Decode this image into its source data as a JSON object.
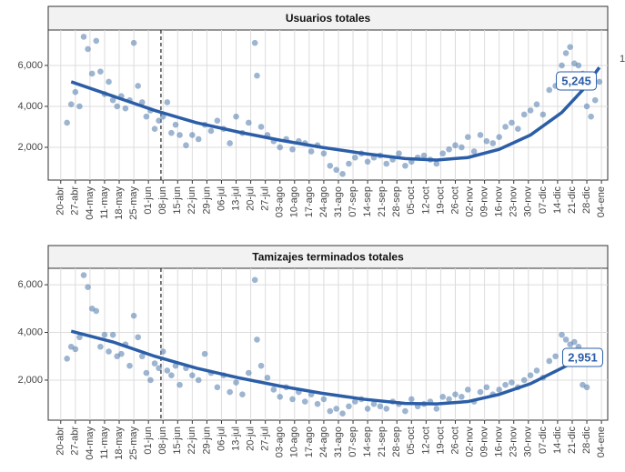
{
  "chart_data": [
    {
      "type": "scatter",
      "title": "Usuarios totales",
      "x": [
        3,
        5,
        7,
        9,
        11,
        13,
        15,
        17,
        19,
        21,
        23,
        25,
        27,
        29,
        31,
        33,
        35,
        37,
        39,
        41,
        43,
        45,
        47,
        49,
        51,
        53,
        55,
        57,
        60,
        63,
        66,
        69,
        72,
        75,
        78,
        81,
        84,
        87,
        90,
        93,
        94,
        96,
        99,
        102,
        105,
        108,
        111,
        114,
        117,
        120,
        123,
        126,
        129,
        132,
        135,
        138,
        141,
        144,
        147,
        150,
        153,
        156,
        159,
        162,
        165,
        168,
        171,
        174,
        177,
        180,
        183,
        186,
        189,
        192,
        195,
        198,
        201,
        204,
        207,
        210,
        213,
        216,
        219,
        222,
        225,
        228,
        231,
        234,
        237,
        240,
        242,
        244,
        246,
        248,
        250,
        252,
        254,
        256,
        258
      ],
      "values": [
        3200,
        4100,
        4700,
        4000,
        7400,
        6800,
        5600,
        7200,
        5700,
        4600,
        5200,
        4300,
        4000,
        4500,
        3900,
        4300,
        7100,
        5000,
        4200,
        3500,
        3800,
        2900,
        3300,
        3500,
        4200,
        2700,
        3100,
        2600,
        2100,
        2600,
        2400,
        3100,
        2800,
        3300,
        2900,
        2200,
        3500,
        2700,
        3200,
        7100,
        5500,
        3000,
        2600,
        2300,
        2000,
        2400,
        1900,
        2300,
        2200,
        1800,
        2100,
        1700,
        1100,
        900,
        700,
        1200,
        1500,
        1700,
        1300,
        1500,
        1600,
        1200,
        1400,
        1700,
        1100,
        1300,
        1500,
        1600,
        1400,
        1200,
        1700,
        1900,
        2100,
        2000,
        2500,
        1800,
        2600,
        2300,
        2200,
        2500,
        3000,
        3200,
        2900,
        3600,
        3800,
        4100,
        3600,
        4800,
        5000,
        6000,
        6600,
        6900,
        6100,
        6000,
        5600,
        4000,
        3500,
        4300,
        5200
      ],
      "trend_x": [
        5,
        25,
        45,
        65,
        85,
        105,
        125,
        145,
        165,
        180,
        195,
        210,
        225,
        240,
        250,
        258
      ],
      "trend_values": [
        5200,
        4500,
        3800,
        3200,
        2750,
        2350,
        2000,
        1700,
        1450,
        1380,
        1500,
        1900,
        2600,
        3700,
        4800,
        5900
      ],
      "annotation": {
        "x": 247,
        "value": 5245,
        "label": "5,245"
      },
      "vline": 48,
      "point_color": "#5b84b1",
      "trend_color": "#2b5ea7",
      "xlim": [
        -6,
        262
      ],
      "ylim": [
        400,
        7730
      ],
      "yticks": [
        {
          "value": 2000,
          "label": "2,000"
        },
        {
          "value": 4000,
          "label": "4,000"
        },
        {
          "value": 6000,
          "label": "6,000"
        }
      ],
      "xticks": [
        {
          "value": 0,
          "label": "20-abr"
        },
        {
          "value": 7,
          "label": "27-abr"
        },
        {
          "value": 14,
          "label": "04-may"
        },
        {
          "value": 21,
          "label": "11-may"
        },
        {
          "value": 28,
          "label": "18-may"
        },
        {
          "value": 35,
          "label": "25-may"
        },
        {
          "value": 42,
          "label": "01-jun"
        },
        {
          "value": 49,
          "label": "08-jun"
        },
        {
          "value": 56,
          "label": "15-jun"
        },
        {
          "value": 63,
          "label": "22-jun"
        },
        {
          "value": 70,
          "label": "29-jun"
        },
        {
          "value": 77,
          "label": "06-jul"
        },
        {
          "value": 84,
          "label": "13-jul"
        },
        {
          "value": 91,
          "label": "20-jul"
        },
        {
          "value": 98,
          "label": "27-jul"
        },
        {
          "value": 105,
          "label": "03-ago"
        },
        {
          "value": 112,
          "label": "10-ago"
        },
        {
          "value": 119,
          "label": "17-ago"
        },
        {
          "value": 126,
          "label": "24-ago"
        },
        {
          "value": 133,
          "label": "31-ago"
        },
        {
          "value": 140,
          "label": "07-sep"
        },
        {
          "value": 147,
          "label": "14-sep"
        },
        {
          "value": 154,
          "label": "21-sep"
        },
        {
          "value": 161,
          "label": "28-sep"
        },
        {
          "value": 168,
          "label": "05-oct"
        },
        {
          "value": 175,
          "label": "12-oct"
        },
        {
          "value": 182,
          "label": "19-oct"
        },
        {
          "value": 189,
          "label": "26-oct"
        },
        {
          "value": 196,
          "label": "02-nov"
        },
        {
          "value": 203,
          "label": "09-nov"
        },
        {
          "value": 210,
          "label": "16-nov"
        },
        {
          "value": 217,
          "label": "23-nov"
        },
        {
          "value": 224,
          "label": "30-nov"
        },
        {
          "value": 231,
          "label": "07-dic"
        },
        {
          "value": 238,
          "label": "14-dic"
        },
        {
          "value": 245,
          "label": "21-dic"
        },
        {
          "value": 252,
          "label": "28-dic"
        },
        {
          "value": 259,
          "label": "04-ene"
        }
      ],
      "grid": true,
      "side_text": "1"
    },
    {
      "type": "scatter",
      "title": "Tamizajes terminados totales",
      "x": [
        3,
        5,
        7,
        9,
        11,
        13,
        15,
        17,
        19,
        21,
        23,
        25,
        27,
        29,
        31,
        33,
        35,
        37,
        39,
        41,
        43,
        45,
        47,
        49,
        51,
        53,
        55,
        57,
        60,
        63,
        66,
        69,
        72,
        75,
        78,
        81,
        84,
        87,
        90,
        93,
        94,
        96,
        99,
        102,
        105,
        108,
        111,
        114,
        117,
        120,
        123,
        126,
        129,
        132,
        135,
        138,
        141,
        144,
        147,
        150,
        153,
        156,
        159,
        162,
        165,
        168,
        171,
        174,
        177,
        180,
        183,
        186,
        189,
        192,
        195,
        198,
        201,
        204,
        207,
        210,
        213,
        216,
        219,
        222,
        225,
        228,
        231,
        234,
        237,
        240,
        242,
        244,
        246,
        248,
        250,
        252,
        254,
        256,
        258
      ],
      "values": [
        2900,
        3400,
        3300,
        3800,
        6400,
        5900,
        5000,
        4900,
        3400,
        3900,
        3200,
        3900,
        3000,
        3100,
        3500,
        2600,
        4700,
        3800,
        3000,
        2300,
        2000,
        2700,
        2500,
        3200,
        2400,
        2200,
        2600,
        1800,
        2500,
        2200,
        2000,
        3100,
        2300,
        1700,
        2200,
        1500,
        1900,
        1400,
        2300,
        6200,
        3700,
        2600,
        2100,
        1600,
        1300,
        1700,
        1200,
        1500,
        1100,
        1400,
        1000,
        1200,
        700,
        800,
        600,
        900,
        1100,
        1200,
        800,
        1000,
        900,
        800,
        1100,
        1000,
        700,
        1200,
        900,
        1000,
        1100,
        800,
        1300,
        1200,
        1400,
        1300,
        1600,
        1100,
        1500,
        1700,
        1400,
        1600,
        1800,
        1900,
        1700,
        2000,
        2200,
        2400,
        2100,
        2800,
        3000,
        3900,
        3700,
        3500,
        3600,
        3400,
        1800,
        1700,
        2700,
        3100,
        2900
      ],
      "trend_x": [
        5,
        25,
        45,
        65,
        85,
        105,
        125,
        145,
        165,
        180,
        195,
        210,
        225,
        240,
        250,
        258
      ],
      "trend_values": [
        4050,
        3600,
        3000,
        2500,
        2100,
        1750,
        1450,
        1200,
        1020,
        1000,
        1100,
        1400,
        1850,
        2500,
        2950,
        3300
      ],
      "annotation": {
        "x": 250,
        "value": 2951,
        "label": "2,951"
      },
      "vline": 48,
      "point_color": "#5b84b1",
      "trend_color": "#2b5ea7",
      "xlim": [
        -6,
        262
      ],
      "ylim": [
        320,
        6690
      ],
      "yticks": [
        {
          "value": 2000,
          "label": "2,000"
        },
        {
          "value": 4000,
          "label": "4,000"
        },
        {
          "value": 6000,
          "label": "6,000"
        }
      ],
      "xticks": [
        {
          "value": 0,
          "label": "20-abr"
        },
        {
          "value": 7,
          "label": "27-abr"
        },
        {
          "value": 14,
          "label": "04-may"
        },
        {
          "value": 21,
          "label": "11-may"
        },
        {
          "value": 28,
          "label": "18-may"
        },
        {
          "value": 35,
          "label": "25-may"
        },
        {
          "value": 42,
          "label": "01-jun"
        },
        {
          "value": 49,
          "label": "08-jun"
        },
        {
          "value": 56,
          "label": "15-jun"
        },
        {
          "value": 63,
          "label": "22-jun"
        },
        {
          "value": 70,
          "label": "29-jun"
        },
        {
          "value": 77,
          "label": "06-jul"
        },
        {
          "value": 84,
          "label": "13-jul"
        },
        {
          "value": 91,
          "label": "20-jul"
        },
        {
          "value": 98,
          "label": "27-jul"
        },
        {
          "value": 105,
          "label": "03-ago"
        },
        {
          "value": 112,
          "label": "10-ago"
        },
        {
          "value": 119,
          "label": "17-ago"
        },
        {
          "value": 126,
          "label": "24-ago"
        },
        {
          "value": 133,
          "label": "31-ago"
        },
        {
          "value": 140,
          "label": "07-sep"
        },
        {
          "value": 147,
          "label": "14-sep"
        },
        {
          "value": 154,
          "label": "21-sep"
        },
        {
          "value": 161,
          "label": "28-sep"
        },
        {
          "value": 168,
          "label": "05-oct"
        },
        {
          "value": 175,
          "label": "12-oct"
        },
        {
          "value": 182,
          "label": "19-oct"
        },
        {
          "value": 189,
          "label": "26-oct"
        },
        {
          "value": 196,
          "label": "02-nov"
        },
        {
          "value": 203,
          "label": "09-nov"
        },
        {
          "value": 210,
          "label": "16-nov"
        },
        {
          "value": 217,
          "label": "23-nov"
        },
        {
          "value": 224,
          "label": "30-nov"
        },
        {
          "value": 231,
          "label": "07-dic"
        },
        {
          "value": 238,
          "label": "14-dic"
        },
        {
          "value": 245,
          "label": "21-dic"
        },
        {
          "value": 252,
          "label": "28-dic"
        },
        {
          "value": 259,
          "label": "04-ene"
        }
      ],
      "grid": true
    }
  ]
}
